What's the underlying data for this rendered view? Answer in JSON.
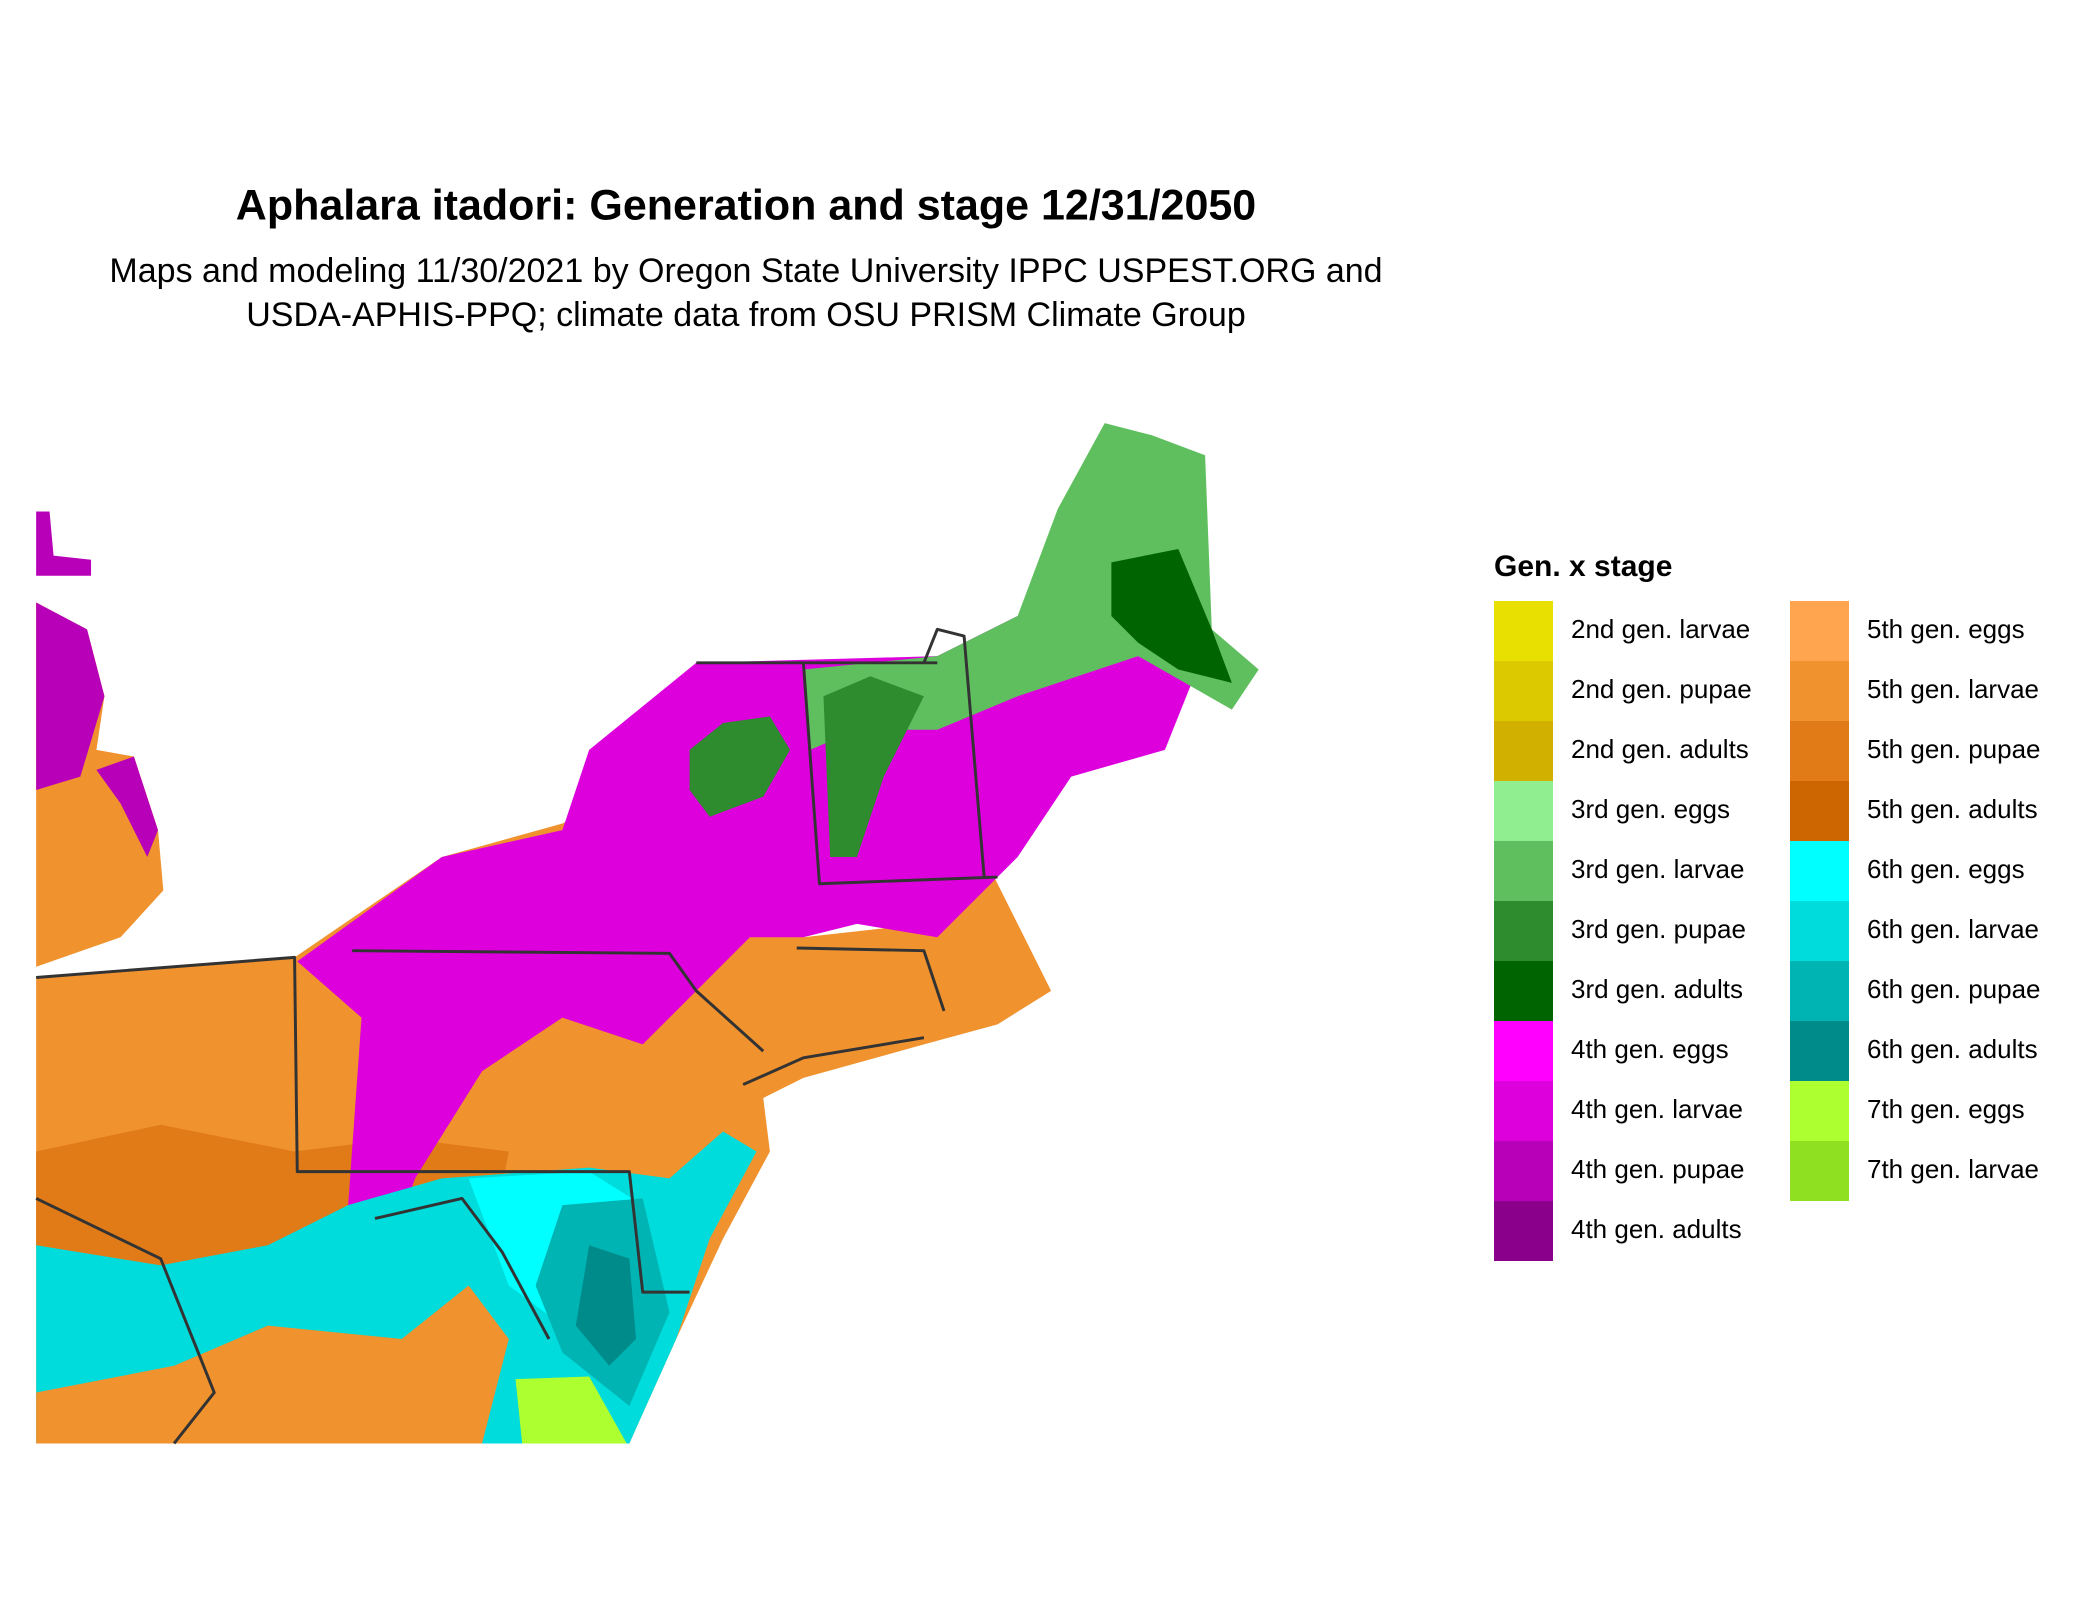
{
  "title": "Aphalara itadori: Generation and stage 12/31/2050",
  "subtitle": [
    "Maps and modeling 11/30/2021 by Oregon State University IPPC USPEST.ORG and",
    "USDA-APHIS-PPQ; climate data from OSU PRISM Climate Group"
  ],
  "legend": {
    "title": "Gen. x stage",
    "items": [
      {
        "label": "2nd gen. larvae",
        "color": "#e8e000"
      },
      {
        "label": "2nd gen. pupae",
        "color": "#ddc900"
      },
      {
        "label": "2nd gen. adults",
        "color": "#d2b000"
      },
      {
        "label": "3rd gen. eggs",
        "color": "#90ee90"
      },
      {
        "label": "3rd gen. larvae",
        "color": "#5fbf5f"
      },
      {
        "label": "3rd gen. pupae",
        "color": "#2e8b2e"
      },
      {
        "label": "3rd gen. adults",
        "color": "#006400"
      },
      {
        "label": "4th gen. eggs",
        "color": "#ff00ff"
      },
      {
        "label": "4th gen. larvae",
        "color": "#dd00dd"
      },
      {
        "label": "4th gen. pupae",
        "color": "#b800b8"
      },
      {
        "label": "4th gen. adults",
        "color": "#8b008b"
      },
      {
        "label": "5th gen. eggs",
        "color": "#ffa54f"
      },
      {
        "label": "5th gen. larvae",
        "color": "#f0922e"
      },
      {
        "label": "5th gen. pupae",
        "color": "#e07b18"
      },
      {
        "label": "5th gen. adults",
        "color": "#cd6600"
      },
      {
        "label": "6th gen. eggs",
        "color": "#00ffff"
      },
      {
        "label": "6th gen. larvae",
        "color": "#00dcdc"
      },
      {
        "label": "6th gen. pupae",
        "color": "#00b4b4"
      },
      {
        "label": "6th gen. adults",
        "color": "#008b8b"
      },
      {
        "label": "7th gen. eggs",
        "color": "#adff2f"
      },
      {
        "label": "7th gen. larvae",
        "color": "#8ee020"
      }
    ]
  }
}
